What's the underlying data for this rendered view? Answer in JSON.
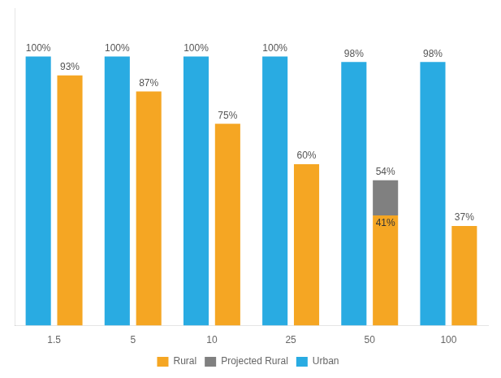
{
  "chart_data": {
    "type": "bar",
    "categories": [
      "1.5",
      "5",
      "10",
      "25",
      "50",
      "100"
    ],
    "series": [
      {
        "name": "Rural",
        "color": "#F5A623",
        "values": [
          93,
          87,
          75,
          60,
          41,
          37
        ],
        "value_labels": [
          "93%",
          "87%",
          "75%",
          "60%",
          "41%",
          "37%"
        ]
      },
      {
        "name": "Projected Rural",
        "color": "#808080",
        "values": [
          0,
          0,
          0,
          0,
          13,
          0
        ],
        "stacked": true
      },
      {
        "name": "Urban",
        "color": "#29ABE2",
        "values": [
          100,
          100,
          100,
          100,
          98,
          98
        ],
        "value_labels": [
          "100%",
          "100%",
          "100%",
          "100%",
          "98%",
          "98%"
        ]
      }
    ],
    "annotations": [
      {
        "text": "54%",
        "x": "50",
        "y": 54,
        "series": "Projected Rural"
      }
    ],
    "ylim": [
      0,
      118
    ],
    "data_labels": true,
    "tick_labels": "x",
    "grid": false,
    "legend": "bottom"
  }
}
